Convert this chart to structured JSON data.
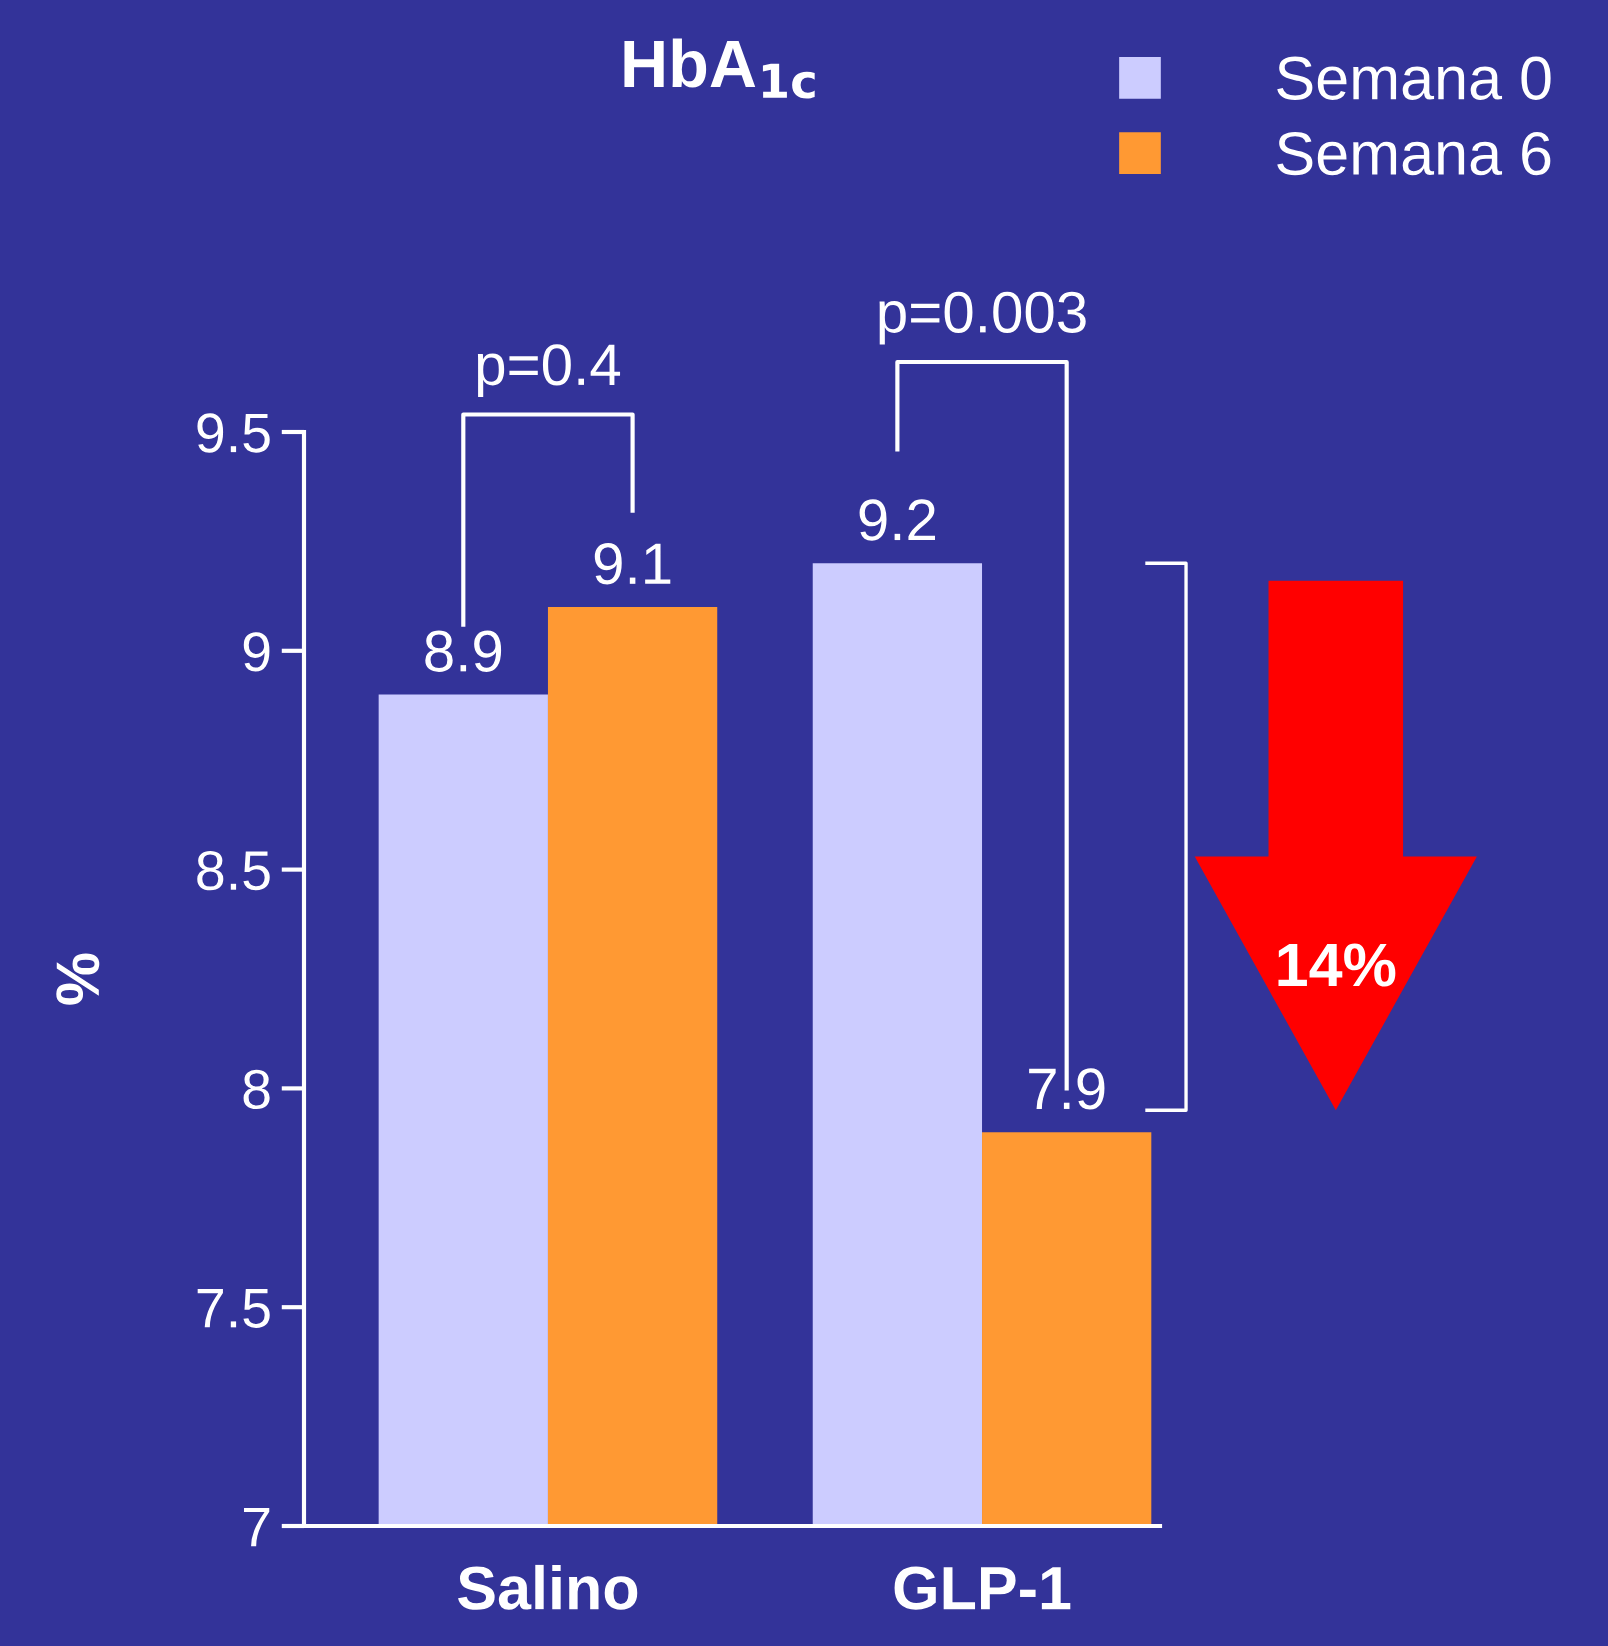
{
  "chart_data": {
    "type": "bar",
    "title": "HbA$_{1c}$",
    "ylabel": "%",
    "categories": [
      "Salino",
      "GLP-1"
    ],
    "series": [
      {
        "name": "Semana 0",
        "color": "#ccccff",
        "values": [
          8.9,
          9.2
        ]
      },
      {
        "name": "Semana 6",
        "color": "#ff9933",
        "values": [
          9.1,
          7.9
        ]
      }
    ],
    "ylim": [
      7,
      9.5
    ],
    "yticks": [
      7,
      7.5,
      8,
      8.5,
      9,
      9.5
    ],
    "data_labels": true,
    "legend": "top right",
    "grid": false,
    "annotations": [
      "p=0.4",
      "p=0.003",
      "14%"
    ]
  }
}
